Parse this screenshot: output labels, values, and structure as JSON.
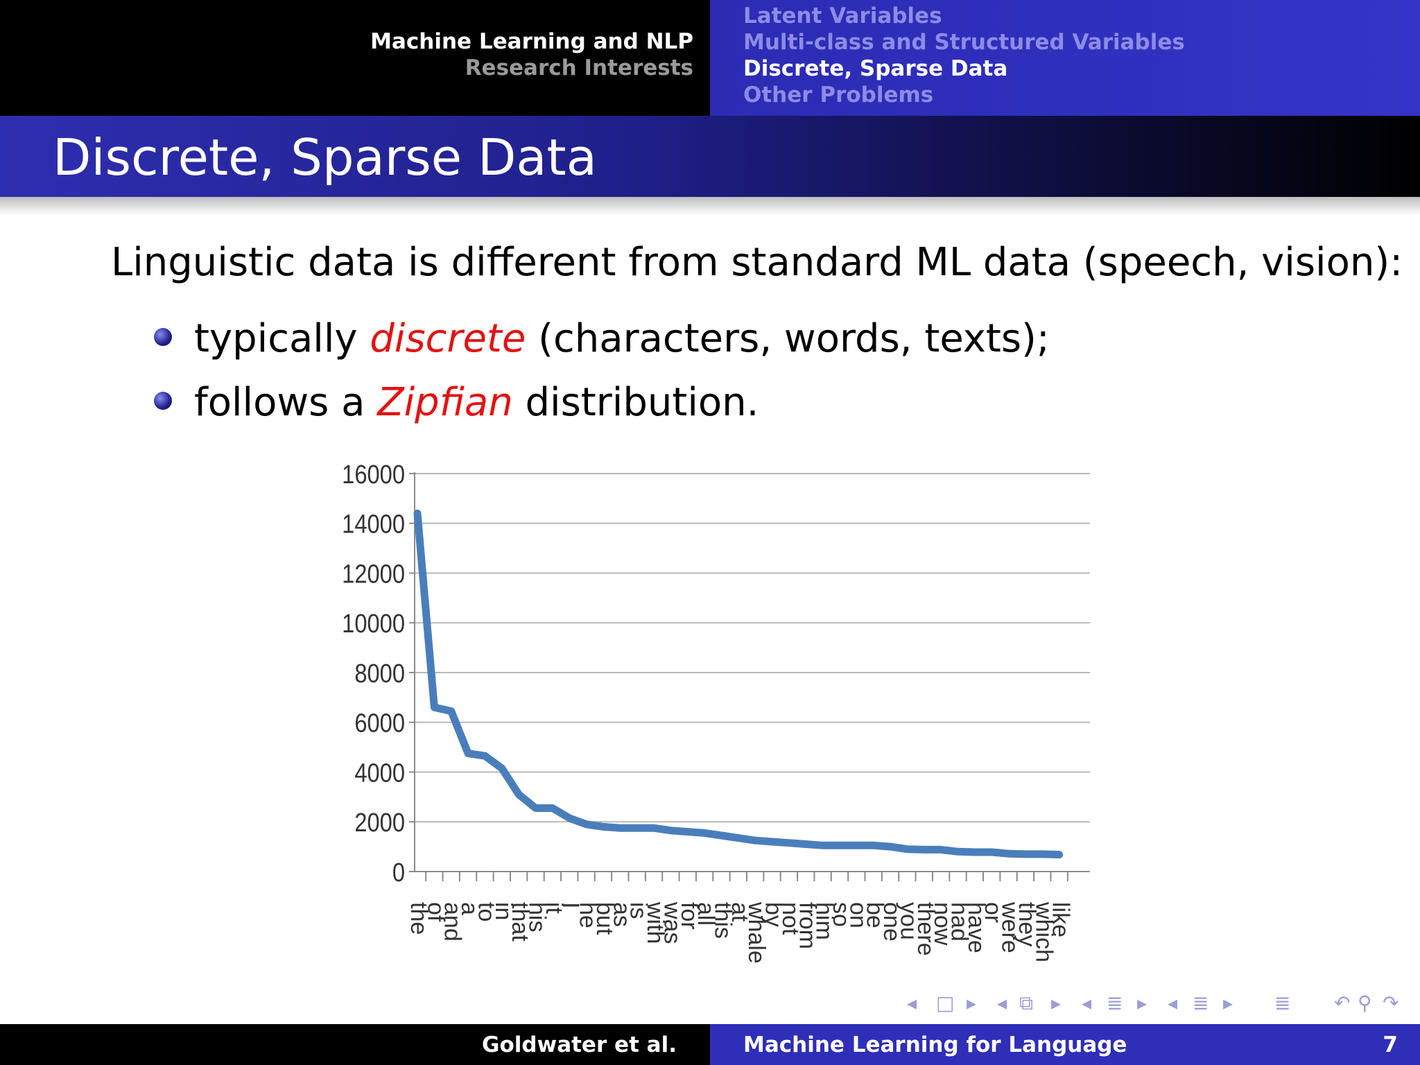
{
  "header": {
    "section_title": "Machine Learning and NLP",
    "section_subtitle": "Research Interests",
    "nav": [
      "Latent Variables",
      "Multi-class and Structured Variables",
      "Discrete, Sparse Data",
      "Other Problems"
    ],
    "active_index": 2
  },
  "slide": {
    "title": "Discrete, Sparse Data",
    "intro": "Linguistic data is different from standard ML data (speech, vision):",
    "bullet1": {
      "before": "typically ",
      "emph": "discrete",
      "after": " (characters, words, texts);"
    },
    "bullet2": {
      "before": "follows a ",
      "emph": "Zipfian",
      "after": " distribution."
    }
  },
  "footer": {
    "author": "Goldwater et al.",
    "title": "Machine Learning for Language",
    "page": "7"
  },
  "nav_icons": [
    "nav-left-arrow",
    "frame-box",
    "nav-right-arrow",
    "nav-left-arrow",
    "subsection-box",
    "nav-right-arrow",
    "nav-left-arrow",
    "section-lines",
    "nav-right-arrow",
    "nav-left-arrow",
    "outline-lines",
    "nav-right-arrow",
    "appendix-lines",
    "back-undo",
    "search-zoom",
    "forward-redo"
  ],
  "colors": {
    "line": "#4a7ebb",
    "accent": "#e31212",
    "beamer_blue": "#2e2eb8"
  },
  "chart_data": {
    "type": "line",
    "title": "",
    "xlabel": "",
    "ylabel": "",
    "ylim": [
      0,
      16000
    ],
    "yticks": [
      0,
      2000,
      4000,
      6000,
      8000,
      10000,
      12000,
      14000,
      16000
    ],
    "grid": true,
    "categories": [
      "the",
      "of",
      "and",
      "a",
      "to",
      "in",
      "that",
      "his",
      "it",
      "I",
      "he",
      "but",
      "as",
      "is",
      "with",
      "was",
      "for",
      "all",
      "this",
      "at",
      "whale",
      "by",
      "not",
      "from",
      "him",
      "so",
      "on",
      "be",
      "one",
      "you",
      "there",
      "now",
      "had",
      "have",
      "or",
      "were",
      "they",
      "which",
      "like"
    ],
    "series": [
      {
        "values": [
          14400,
          6600,
          6450,
          4750,
          4650,
          4150,
          3100,
          2550,
          2550,
          2150,
          1900,
          1800,
          1750,
          1750,
          1750,
          1650,
          1600,
          1550,
          1450,
          1350,
          1250,
          1200,
          1150,
          1100,
          1050,
          1050,
          1050,
          1050,
          1000,
          900,
          880,
          880,
          800,
          780,
          780,
          720,
          700,
          700,
          680
        ]
      }
    ]
  }
}
